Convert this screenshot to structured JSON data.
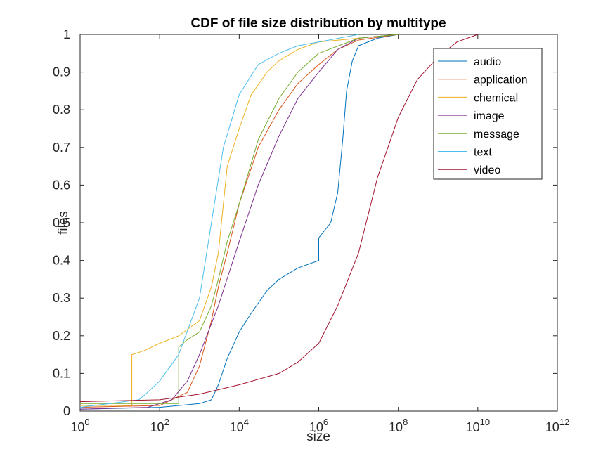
{
  "chart_data": {
    "type": "line",
    "title": "CDF of file size distribution by multitype",
    "xlabel": "size",
    "ylabel": "files",
    "xscale": "log",
    "xlim": [
      1,
      1000000000000
    ],
    "ylim": [
      0,
      1
    ],
    "grid": false,
    "legend_position": "top-right",
    "x_ticks": [
      {
        "value": 1,
        "base": "10",
        "exp": "0"
      },
      {
        "value": 100,
        "base": "10",
        "exp": "2"
      },
      {
        "value": 10000,
        "base": "10",
        "exp": "4"
      },
      {
        "value": 1000000,
        "base": "10",
        "exp": "6"
      },
      {
        "value": 100000000,
        "base": "10",
        "exp": "8"
      },
      {
        "value": 10000000000,
        "base": "10",
        "exp": "10"
      },
      {
        "value": 1000000000000,
        "base": "10",
        "exp": "12"
      }
    ],
    "y_ticks": [
      "0",
      "0.1",
      "0.2",
      "0.3",
      "0.4",
      "0.5",
      "0.6",
      "0.7",
      "0.8",
      "0.9",
      "1"
    ],
    "series": [
      {
        "name": "audio",
        "color": "#0072BD",
        "points": [
          [
            1,
            0.005
          ],
          [
            100,
            0.01
          ],
          [
            1000,
            0.02
          ],
          [
            2000,
            0.03
          ],
          [
            3000,
            0.07
          ],
          [
            5000,
            0.14
          ],
          [
            10000,
            0.21
          ],
          [
            20000,
            0.26
          ],
          [
            50000,
            0.32
          ],
          [
            100000,
            0.35
          ],
          [
            300000,
            0.38
          ],
          [
            1000000,
            0.4
          ],
          [
            1000000,
            0.46
          ],
          [
            2000000,
            0.5
          ],
          [
            3000000,
            0.58
          ],
          [
            4000000,
            0.72
          ],
          [
            5000000,
            0.85
          ],
          [
            7000000,
            0.93
          ],
          [
            10000000,
            0.97
          ],
          [
            30000000,
            0.99
          ],
          [
            100000000,
            1
          ]
        ]
      },
      {
        "name": "application",
        "color": "#D95319",
        "points": [
          [
            1,
            0.01
          ],
          [
            100,
            0.015
          ],
          [
            500,
            0.05
          ],
          [
            1000,
            0.12
          ],
          [
            2000,
            0.24
          ],
          [
            3000,
            0.33
          ],
          [
            5000,
            0.42
          ],
          [
            10000,
            0.55
          ],
          [
            30000,
            0.7
          ],
          [
            100000,
            0.8
          ],
          [
            300000,
            0.87
          ],
          [
            1000000,
            0.92
          ],
          [
            3000000,
            0.96
          ],
          [
            10000000,
            0.985
          ],
          [
            100000000,
            1
          ]
        ]
      },
      {
        "name": "chemical",
        "color": "#EDB120",
        "points": [
          [
            1,
            0.015
          ],
          [
            20,
            0.015
          ],
          [
            20,
            0.15
          ],
          [
            40,
            0.16
          ],
          [
            100,
            0.18
          ],
          [
            300,
            0.2
          ],
          [
            1000,
            0.24
          ],
          [
            2000,
            0.33
          ],
          [
            3000,
            0.42
          ],
          [
            4000,
            0.55
          ],
          [
            5000,
            0.65
          ],
          [
            10000,
            0.75
          ],
          [
            20000,
            0.84
          ],
          [
            50000,
            0.9
          ],
          [
            100000,
            0.93
          ],
          [
            300000,
            0.96
          ],
          [
            1000000,
            0.98
          ],
          [
            10000000,
            0.99
          ],
          [
            100000000,
            1
          ]
        ]
      },
      {
        "name": "image",
        "color": "#7E2F8E",
        "points": [
          [
            1,
            0.005
          ],
          [
            50,
            0.01
          ],
          [
            200,
            0.03
          ],
          [
            500,
            0.08
          ],
          [
            1000,
            0.15
          ],
          [
            3000,
            0.28
          ],
          [
            10000,
            0.45
          ],
          [
            30000,
            0.6
          ],
          [
            100000,
            0.73
          ],
          [
            300000,
            0.83
          ],
          [
            1000000,
            0.9
          ],
          [
            3000000,
            0.96
          ],
          [
            10000000,
            0.99
          ],
          [
            100000000,
            1
          ]
        ]
      },
      {
        "name": "message",
        "color": "#77AC30",
        "points": [
          [
            1,
            0.02
          ],
          [
            300,
            0.02
          ],
          [
            300,
            0.17
          ],
          [
            500,
            0.19
          ],
          [
            1000,
            0.21
          ],
          [
            2000,
            0.28
          ],
          [
            3000,
            0.35
          ],
          [
            5000,
            0.45
          ],
          [
            10000,
            0.55
          ],
          [
            30000,
            0.72
          ],
          [
            100000,
            0.83
          ],
          [
            300000,
            0.9
          ],
          [
            1000000,
            0.95
          ],
          [
            10000000,
            0.99
          ],
          [
            100000000,
            1
          ]
        ]
      },
      {
        "name": "text",
        "color": "#4DBEEE",
        "points": [
          [
            1,
            0.01
          ],
          [
            30,
            0.03
          ],
          [
            50,
            0.05
          ],
          [
            100,
            0.08
          ],
          [
            300,
            0.15
          ],
          [
            1000,
            0.3
          ],
          [
            2000,
            0.5
          ],
          [
            4000,
            0.7
          ],
          [
            10000,
            0.84
          ],
          [
            30000,
            0.92
          ],
          [
            100000,
            0.95
          ],
          [
            300000,
            0.97
          ],
          [
            1000000,
            0.98
          ],
          [
            10000000,
            1
          ]
        ]
      },
      {
        "name": "video",
        "color": "#A2142F",
        "points": [
          [
            1,
            0.025
          ],
          [
            100,
            0.03
          ],
          [
            1000,
            0.045
          ],
          [
            10000,
            0.07
          ],
          [
            100000,
            0.1
          ],
          [
            300000,
            0.13
          ],
          [
            1000000,
            0.18
          ],
          [
            3000000,
            0.28
          ],
          [
            10000000,
            0.42
          ],
          [
            30000000,
            0.62
          ],
          [
            100000000,
            0.78
          ],
          [
            300000000,
            0.88
          ],
          [
            1000000000,
            0.94
          ],
          [
            3000000000,
            0.98
          ],
          [
            10000000000,
            1
          ]
        ]
      }
    ]
  }
}
